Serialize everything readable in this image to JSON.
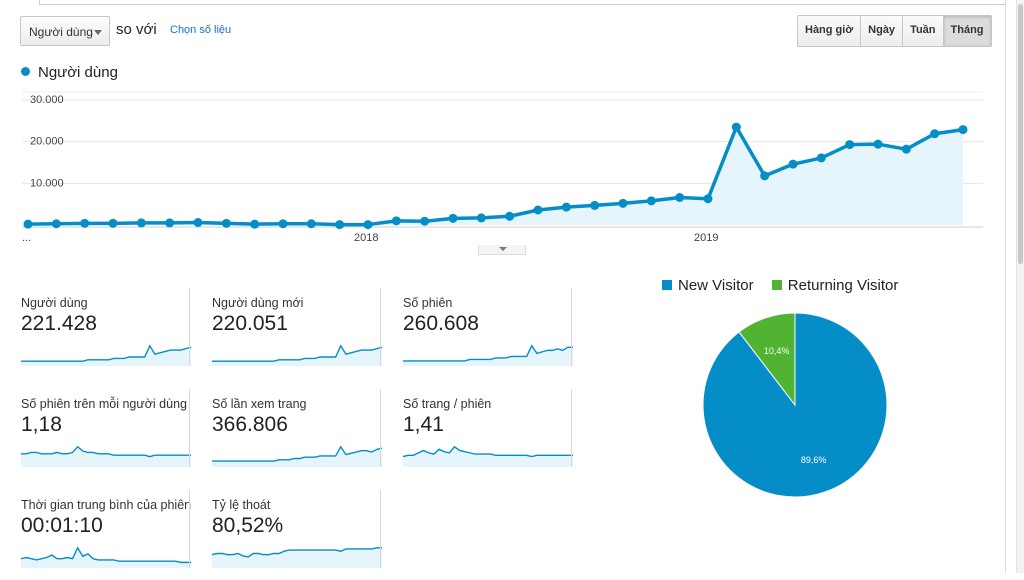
{
  "toolbar": {
    "metric_select": "Người dùng",
    "compare_text": "so với",
    "choose_metric_link": "Chọn số liệu",
    "granularity": [
      "Hàng giờ",
      "Ngày",
      "Tuần",
      "Tháng"
    ],
    "active_granularity": "Tháng"
  },
  "chart_legend": "Người dùng",
  "colors": {
    "series": "#058dc7",
    "fill": "#e6f4fb",
    "new_visitor": "#058dc7",
    "returning_visitor": "#50b432"
  },
  "chart_data": [
    {
      "type": "area",
      "title": "Người dùng",
      "y_ticks": [
        "30.000",
        "20.000",
        "10.000"
      ],
      "ylim": [
        0,
        30000
      ],
      "x_labels": [
        {
          "label": "...",
          "index": 0
        },
        {
          "label": "2018",
          "index": 12
        },
        {
          "label": "2019",
          "index": 24
        }
      ],
      "values": [
        200,
        300,
        400,
        400,
        500,
        500,
        600,
        400,
        200,
        300,
        300,
        100,
        100,
        1000,
        900,
        1600,
        1700,
        2100,
        3600,
        4300,
        4700,
        5200,
        5800,
        6600,
        6300,
        23500,
        11800,
        14600,
        16100,
        19300,
        19400,
        18200,
        21900,
        22900
      ]
    },
    {
      "type": "pie",
      "legend": [
        "New Visitor",
        "Returning Visitor"
      ],
      "values": [
        89.6,
        10.4
      ],
      "labels": [
        "89,6%",
        "10,4%"
      ]
    }
  ],
  "metrics": [
    {
      "label": "Người dùng",
      "value": "221.428",
      "spark": [
        2,
        2,
        2,
        2,
        2,
        2,
        2,
        2,
        2,
        2,
        2,
        2,
        2,
        3,
        3,
        3,
        3,
        3,
        4,
        4,
        4,
        5,
        5,
        5,
        5,
        13,
        7,
        8,
        9,
        10,
        10,
        10,
        11,
        12
      ]
    },
    {
      "label": "Người dùng mới",
      "value": "220.051",
      "spark": [
        2,
        2,
        2,
        2,
        2,
        2,
        2,
        2,
        2,
        2,
        2,
        2,
        2,
        3,
        3,
        3,
        3,
        3,
        4,
        4,
        4,
        5,
        5,
        5,
        5,
        13,
        7,
        8,
        9,
        10,
        10,
        10,
        11,
        12
      ]
    },
    {
      "label": "Số phiên",
      "value": "260.608",
      "spark": [
        2,
        2,
        2,
        2,
        2,
        2,
        2,
        2,
        2,
        2,
        2,
        2,
        2,
        3,
        3,
        3,
        3,
        3,
        4,
        4,
        4,
        5,
        5,
        5,
        5,
        12,
        7,
        8,
        9,
        9,
        10,
        9,
        11,
        11
      ]
    },
    {
      "label": "Số phiên trên mỗi người dùng",
      "value": "1,18",
      "spark": [
        8,
        8,
        9,
        9,
        8,
        8,
        8,
        9,
        8,
        8,
        9,
        13,
        10,
        9,
        9,
        8,
        8,
        8,
        7,
        7,
        7,
        7,
        7,
        7,
        7,
        6,
        7,
        7,
        7,
        7,
        7,
        7,
        7,
        7
      ]
    },
    {
      "label": "Số lần xem trang",
      "value": "366.806",
      "spark": [
        3,
        3,
        3,
        3,
        3,
        3,
        3,
        3,
        3,
        3,
        3,
        3,
        3,
        4,
        4,
        4,
        5,
        5,
        6,
        6,
        6,
        7,
        7,
        7,
        7,
        14,
        8,
        9,
        10,
        11,
        11,
        10,
        12,
        13
      ]
    },
    {
      "label": "Số trang / phiên",
      "value": "1,41",
      "spark": [
        7,
        8,
        8,
        10,
        12,
        10,
        9,
        13,
        11,
        10,
        15,
        12,
        11,
        10,
        9,
        9,
        9,
        9,
        8,
        8,
        8,
        8,
        8,
        8,
        8,
        7,
        8,
        8,
        8,
        8,
        8,
        8,
        8,
        8
      ]
    },
    {
      "label": "Thời gian trung bình của phiên",
      "value": "00:01:10",
      "spark": [
        6,
        7,
        6,
        5,
        6,
        7,
        9,
        6,
        6,
        7,
        6,
        15,
        8,
        10,
        6,
        5,
        5,
        5,
        5,
        4,
        4,
        4,
        4,
        4,
        4,
        4,
        4,
        4,
        4,
        4,
        4,
        3,
        3,
        3
      ]
    },
    {
      "label": "Tỷ lệ thoát",
      "value": "80,52%",
      "spark": [
        10,
        11,
        11,
        10,
        10,
        11,
        9,
        8,
        11,
        11,
        10,
        10,
        11,
        11,
        13,
        14,
        14,
        14,
        14,
        14,
        14,
        14,
        14,
        14,
        14,
        13,
        15,
        15,
        15,
        15,
        15,
        15,
        16,
        16
      ]
    }
  ]
}
